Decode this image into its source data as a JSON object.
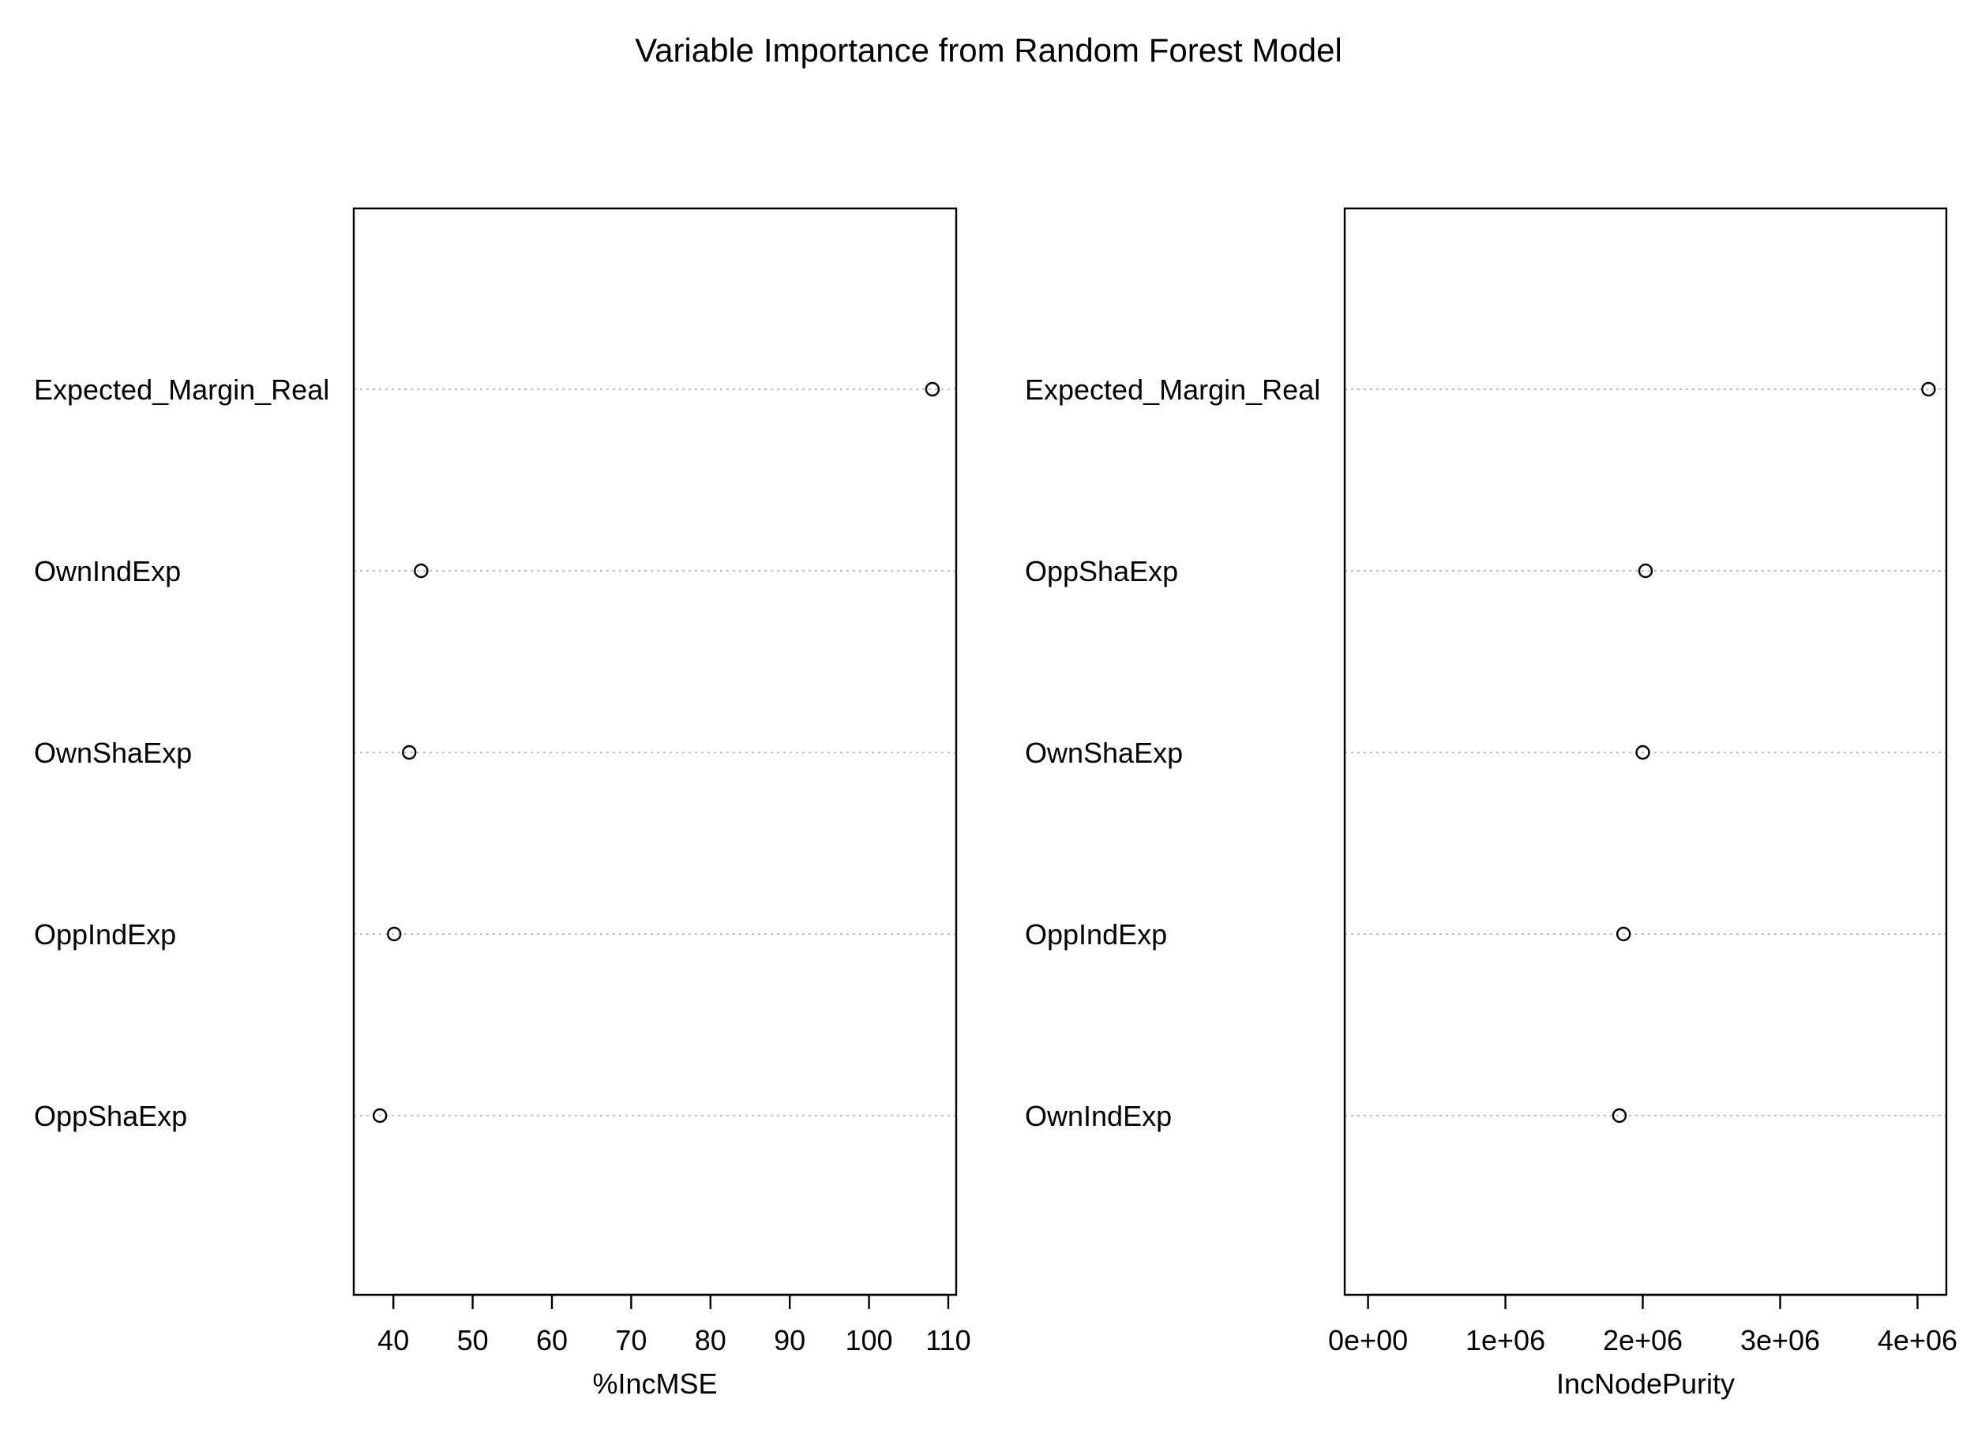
{
  "title": "Variable Importance from Random Forest Model",
  "chart_data": [
    {
      "type": "scatter",
      "xlabel": "%IncMSE",
      "xlim": [
        35,
        111
      ],
      "ticks": [
        40,
        50,
        60,
        70,
        80,
        90,
        100,
        110
      ],
      "tick_labels": [
        "40",
        "50",
        "60",
        "70",
        "80",
        "90",
        "100",
        "110"
      ],
      "grid": "dotted horizontal guide lines",
      "variables": [
        "Expected_Margin_Real",
        "OwnIndExp",
        "OwnShaExp",
        "OppIndExp",
        "OppShaExp"
      ],
      "values": [
        108,
        43.5,
        42,
        40.1,
        38.3
      ]
    },
    {
      "type": "scatter",
      "xlabel": "IncNodePurity",
      "xlim": [
        -170000,
        4210000
      ],
      "ticks": [
        0,
        1000000,
        2000000,
        3000000,
        4000000
      ],
      "tick_labels": [
        "0e+00",
        "1e+06",
        "2e+06",
        "3e+06",
        "4e+06"
      ],
      "grid": "dotted horizontal guide lines",
      "variables": [
        "Expected_Margin_Real",
        "OppShaExp",
        "OwnShaExp",
        "OppIndExp",
        "OwnIndExp"
      ],
      "values": [
        4080000,
        2020000,
        2000000,
        1860000,
        1830000
      ]
    }
  ]
}
